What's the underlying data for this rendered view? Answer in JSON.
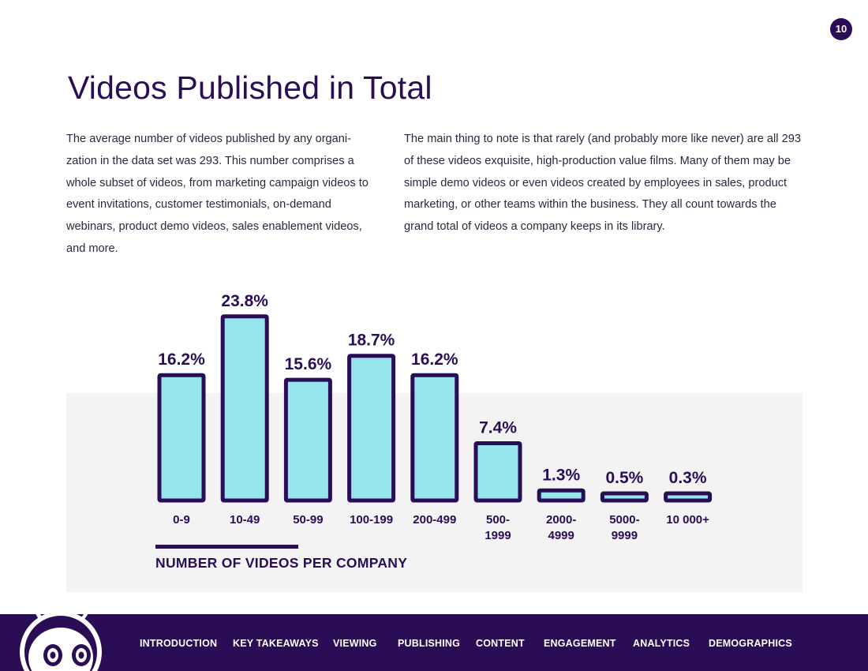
{
  "page_number": "10",
  "title": "Videos Published in Total",
  "paragraphs": {
    "left": "The average number of videos published by any organi-zation in the data set was 293. This number comprises a whole subset of videos, from marketing campaign videos to event invitations, customer testimonials, on-demand webinars, product demo videos, sales enablement videos, and more.",
    "right": "The main thing to note is that rarely (and probably more like never) are all 293 of these videos exquisite, high-production value films. Many of them may be simple demo videos or even videos created by employees in sales, product marketing, or other teams within the business. They all count towards the grand total of videos a company keeps in its library."
  },
  "chart_data": {
    "type": "bar",
    "title": "NUMBER OF VIDEOS PER COMPANY",
    "categories": [
      "0-9",
      "10-49",
      "50-99",
      "100-199",
      "200-499",
      "500-\n1999",
      "2000-\n4999",
      "5000-\n9999",
      "10 000+"
    ],
    "values": [
      16.2,
      23.8,
      15.6,
      18.7,
      16.2,
      7.4,
      1.3,
      0.5,
      0.3
    ],
    "data_labels": [
      "16.2%",
      "23.8%",
      "15.6%",
      "18.7%",
      "16.2%",
      "7.4%",
      "1.3%",
      "0.5%",
      "0.3%"
    ],
    "ylim": [
      0,
      25
    ],
    "grid": false,
    "legend": "none",
    "colors": {
      "bar_fill": "#95e6ec",
      "bar_stroke": "#2a0d55",
      "text": "#2a0d55"
    }
  },
  "footer": {
    "nav": [
      "INTRODUCTION",
      "KEY TAKEAWAYS",
      "VIEWING",
      "PUBLISHING",
      "CONTENT",
      "ENGAGEMENT",
      "ANALYTICS",
      "DEMOGRAPHICS"
    ]
  },
  "colors": {
    "brand": "#2a0d55",
    "panel": "#f3f3f4"
  }
}
